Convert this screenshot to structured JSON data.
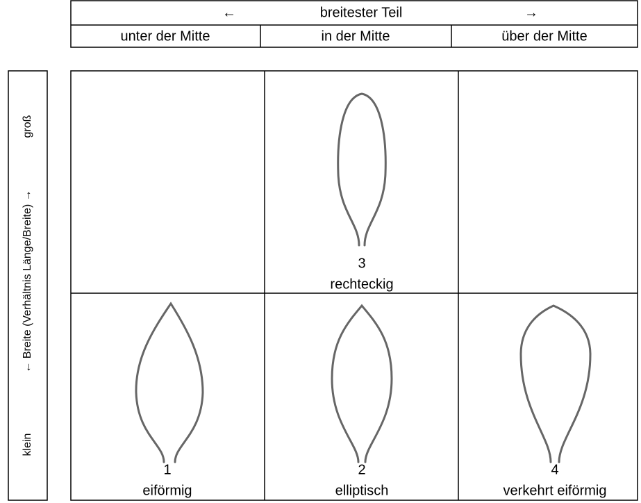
{
  "header": {
    "arrow_left": "←",
    "title": "breitester Teil",
    "arrow_right": "→",
    "columns": [
      "unter der Mitte",
      "in der Mitte",
      "über der Mitte"
    ]
  },
  "side_axis": {
    "low": "klein",
    "label": "← Breite (Verhältnis Länge/Breite) →",
    "high": "groß"
  },
  "cells": [
    {
      "number": 3,
      "label": "rechteckig"
    },
    {
      "number": 1,
      "label": "eiförmig"
    },
    {
      "number": 2,
      "label": "elliptisch"
    },
    {
      "number": 4,
      "label": "verkehrt eiförmig"
    }
  ]
}
